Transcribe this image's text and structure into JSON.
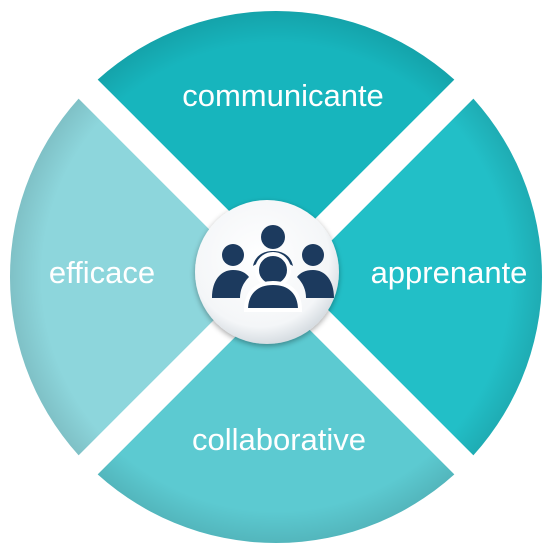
{
  "segments": {
    "top": {
      "label": "communicante",
      "color": "#17b5bd"
    },
    "right": {
      "label": "apprenante",
      "color": "#22bfc7"
    },
    "bottom": {
      "label": "collaborative",
      "color": "#5ccad1"
    },
    "left": {
      "label": "efficace",
      "color": "#8dd6dc"
    }
  },
  "center": {
    "icon": "team-people-icon",
    "icon_color": "#1c3a5e",
    "background": "#ffffff"
  },
  "separator_color": "#ffffff"
}
